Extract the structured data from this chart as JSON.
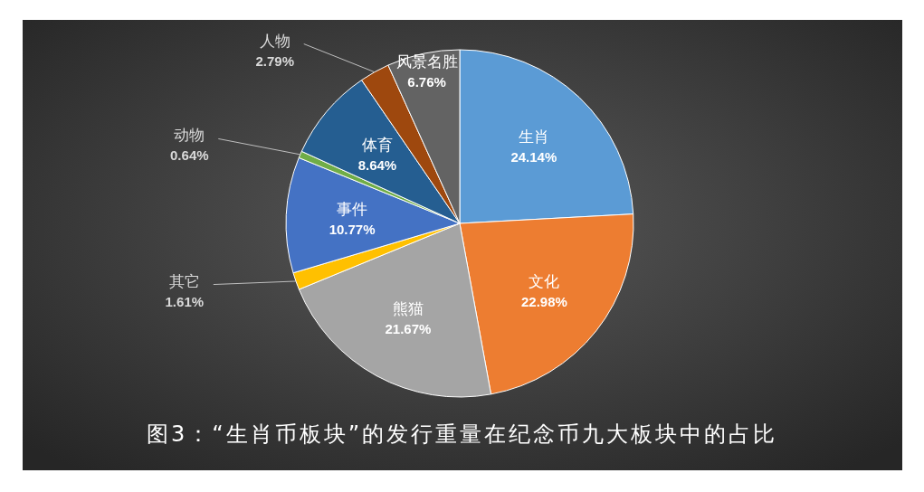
{
  "chart_data": {
    "type": "pie",
    "title": "图3：“生肖币板块”的发行重量在纪念币九大板块中的占比",
    "categories": [
      "生肖",
      "文化",
      "熊猫",
      "其它",
      "事件",
      "动物",
      "体育",
      "人物",
      "风景名胜"
    ],
    "values": [
      24.14,
      22.98,
      21.67,
      1.61,
      10.77,
      0.64,
      8.64,
      2.79,
      6.76
    ],
    "colors": [
      "#5b9bd5",
      "#ed7d31",
      "#a5a5a5",
      "#ffc000",
      "#4472c4",
      "#70ad47",
      "#255e91",
      "#9e480e",
      "#636363"
    ],
    "value_labels": [
      "24.14%",
      "22.98%",
      "21.67%",
      "1.61%",
      "10.77%",
      "0.64%",
      "8.64%",
      "2.79%",
      "6.76%"
    ]
  }
}
